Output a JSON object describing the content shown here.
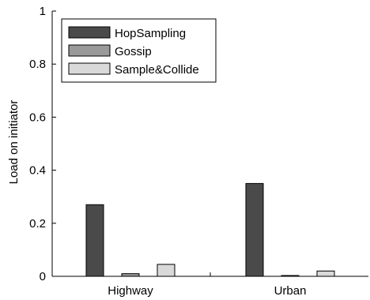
{
  "chart_data": {
    "type": "bar",
    "categories": [
      "Highway",
      "Urban"
    ],
    "series": [
      {
        "name": "HopSampling",
        "values": [
          0.27,
          0.35
        ],
        "color": "#4a4a4a"
      },
      {
        "name": "Gossip",
        "values": [
          0.01,
          0.003
        ],
        "color": "#9a9a9a"
      },
      {
        "name": "Sample&Collide",
        "values": [
          0.045,
          0.02
        ],
        "color": "#d9d9d9"
      }
    ],
    "ylabel": "Load on initiator",
    "xlabel": "",
    "ylim": [
      0,
      1
    ],
    "yticks": [
      0,
      0.2,
      0.4,
      0.6,
      0.8,
      1
    ],
    "ytick_labels": [
      "0",
      "0.2",
      "0.4",
      "0.6",
      "0.8",
      "1"
    ],
    "legend_position": "top-left",
    "grid": false
  }
}
